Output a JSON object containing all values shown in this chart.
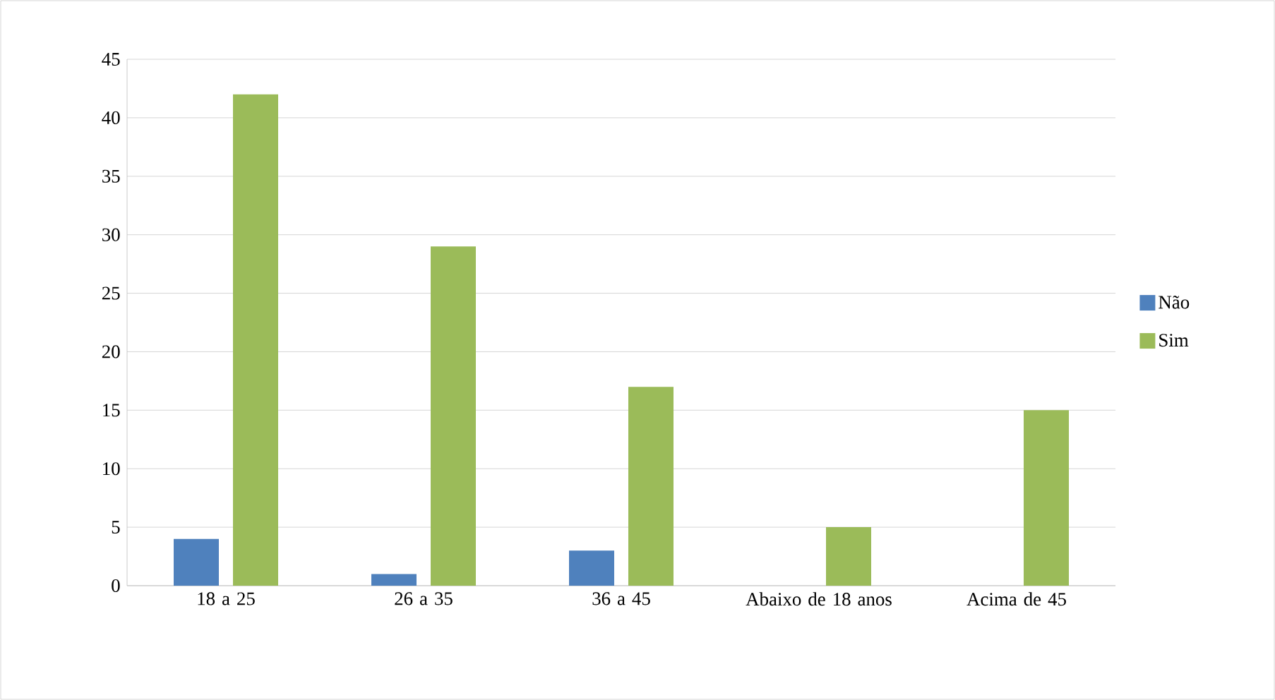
{
  "chart_data": {
    "type": "bar",
    "categories": [
      "18 a 25",
      "26 a 35",
      "36 a 45",
      "Abaixo de 18 anos",
      "Acima de 45"
    ],
    "series": [
      {
        "name": "Não",
        "color": "#4f81bd",
        "values": [
          4,
          1,
          3,
          null,
          null
        ]
      },
      {
        "name": "Sim",
        "color": "#9bbb59",
        "values": [
          42,
          29,
          17,
          5,
          15
        ]
      }
    ],
    "ylim": [
      0,
      45
    ],
    "yticks": [
      0,
      5,
      10,
      15,
      20,
      25,
      30,
      35,
      40,
      45
    ],
    "grid": "y",
    "legend": "right"
  }
}
